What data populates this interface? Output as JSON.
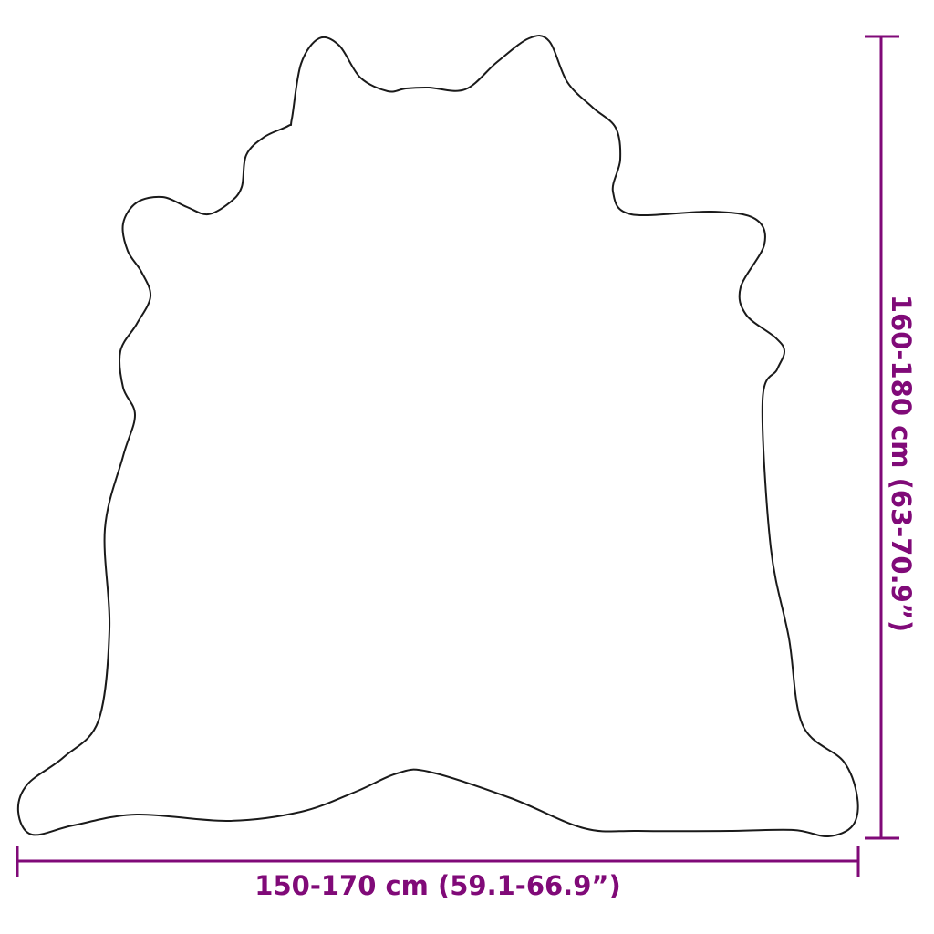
{
  "dimensions": {
    "width_label": "150-170 cm (59.1-66.9”)",
    "height_label": "160-180 cm (63-70.9”)"
  },
  "colors": {
    "dimension": "#800a78",
    "outline": "#1a1a1a",
    "background": "#ffffff"
  }
}
